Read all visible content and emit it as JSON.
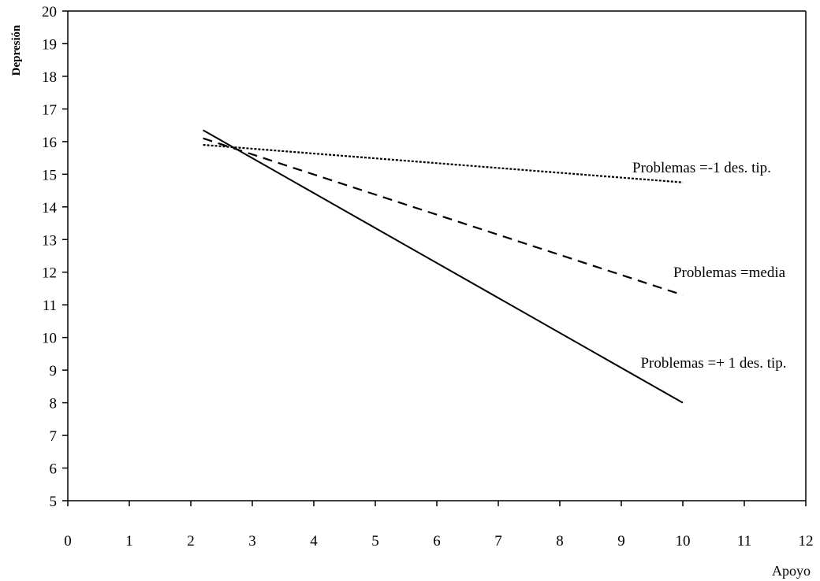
{
  "chart_data": {
    "type": "line",
    "title": "",
    "xlabel": "Apoyo",
    "ylabel": "Depresión",
    "xlim": [
      0,
      12
    ],
    "ylim": [
      5,
      20
    ],
    "xticks": [
      0,
      1,
      2,
      3,
      4,
      5,
      6,
      7,
      8,
      9,
      10,
      11,
      12
    ],
    "yticks": [
      5,
      6,
      7,
      8,
      9,
      10,
      11,
      12,
      13,
      14,
      15,
      16,
      17,
      18,
      19,
      20
    ],
    "grid": false,
    "legend": "none",
    "series": [
      {
        "name": "Problemas =-1 des. tip.",
        "style": "dotted",
        "x": [
          2.2,
          10
        ],
        "y": [
          15.9,
          14.75
        ]
      },
      {
        "name": "Problemas =media",
        "style": "dashed",
        "x": [
          2.2,
          10
        ],
        "y": [
          16.1,
          11.3
        ]
      },
      {
        "name": "Problemas =+ 1 des. tip.",
        "style": "solid",
        "x": [
          2.2,
          10
        ],
        "y": [
          16.35,
          8.0
        ]
      }
    ]
  }
}
